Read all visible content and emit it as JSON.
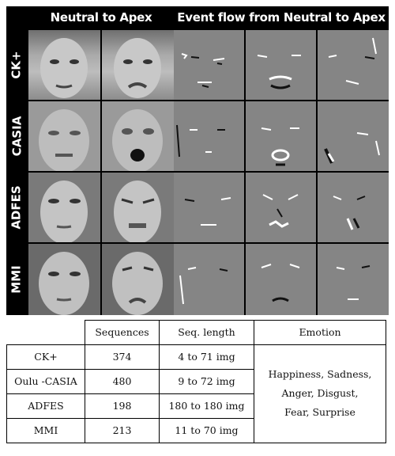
{
  "figure": {
    "header_left": "Neutral to Apex",
    "header_right": "Event flow from Neutral to Apex",
    "rows": [
      {
        "label": "CK+"
      },
      {
        "label": "CASIA"
      },
      {
        "label": "ADFES"
      },
      {
        "label": "MMI"
      }
    ]
  },
  "table": {
    "headers": [
      "Sequences",
      "Seq. length",
      "Emotion"
    ],
    "rows": [
      {
        "dataset": "CK+",
        "sequences": "374",
        "length": "4 to 71 img"
      },
      {
        "dataset": "Oulu -CASIA",
        "sequences": "480",
        "length": "9 to 72 img"
      },
      {
        "dataset": "ADFES",
        "sequences": "198",
        "length": "180 to 180 img"
      },
      {
        "dataset": "MMI",
        "sequences": "213",
        "length": "11 to 70 img"
      }
    ],
    "emotion_lines": [
      "Happiness, Sadness,",
      "Anger, Disgust,",
      "Fear, Surprise"
    ]
  }
}
